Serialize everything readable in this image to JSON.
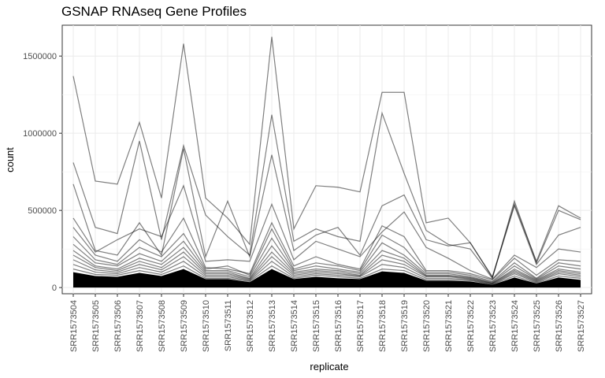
{
  "chart_data": {
    "type": "line",
    "title": "GSNAP RNAseq Gene Profiles",
    "xlabel": "replicate",
    "ylabel": "count",
    "ylim": [
      -40000,
      1700000
    ],
    "yticks": [
      0,
      500000,
      1000000,
      1500000
    ],
    "ytick_labels": [
      "0",
      "500000",
      "1000000",
      "1500000"
    ],
    "grid": true,
    "legend": "none",
    "line_color": "#000000",
    "line_opacity": 0.5,
    "categories": [
      "SRR1573504",
      "SRR1573505",
      "SRR1573506",
      "SRR1573507",
      "SRR1573508",
      "SRR1573509",
      "SRR1573510",
      "SRR1573511",
      "SRR1573512",
      "SRR1573513",
      "SRR1573514",
      "SRR1573515",
      "SRR1573516",
      "SRR1573517",
      "SRR1573518",
      "SRR1573519",
      "SRR1573520",
      "SRR1573521",
      "SRR1573522",
      "SRR1573523",
      "SRR1573524",
      "SRR1573525",
      "SRR1573526",
      "SRR1573527"
    ],
    "series": [
      {
        "values": [
          1370000,
          690000,
          670000,
          1070000,
          580000,
          1580000,
          580000,
          450000,
          280000,
          1625000,
          380000,
          660000,
          650000,
          620000,
          1265000,
          1265000,
          420000,
          450000,
          290000,
          70000,
          540000,
          170000,
          530000,
          450000
        ]
      },
      {
        "values": [
          810000,
          390000,
          350000,
          950000,
          310000,
          920000,
          470000,
          330000,
          210000,
          1120000,
          300000,
          380000,
          330000,
          300000,
          1130000,
          740000,
          370000,
          280000,
          250000,
          60000,
          560000,
          160000,
          500000,
          440000
        ]
      },
      {
        "values": [
          670000,
          240000,
          210000,
          420000,
          210000,
          900000,
          200000,
          560000,
          200000,
          860000,
          240000,
          340000,
          390000,
          210000,
          530000,
          600000,
          310000,
          270000,
          290000,
          65000,
          530000,
          150000,
          340000,
          390000
        ]
      },
      {
        "values": [
          450000,
          230000,
          310000,
          380000,
          330000,
          660000,
          170000,
          180000,
          170000,
          540000,
          180000,
          300000,
          250000,
          200000,
          360000,
          490000,
          260000,
          190000,
          110000,
          55000,
          210000,
          130000,
          250000,
          230000
        ]
      },
      {
        "values": [
          390000,
          210000,
          170000,
          310000,
          230000,
          450000,
          130000,
          120000,
          90000,
          420000,
          140000,
          200000,
          150000,
          120000,
          400000,
          330000,
          110000,
          110000,
          90000,
          50000,
          190000,
          80000,
          180000,
          170000
        ]
      },
      {
        "values": [
          330000,
          180000,
          150000,
          260000,
          200000,
          350000,
          120000,
          140000,
          80000,
          380000,
          120000,
          160000,
          140000,
          110000,
          340000,
          260000,
          100000,
          100000,
          80000,
          40000,
          160000,
          60000,
          160000,
          140000
        ]
      },
      {
        "values": [
          280000,
          160000,
          140000,
          220000,
          170000,
          300000,
          110000,
          110000,
          70000,
          320000,
          110000,
          140000,
          120000,
          100000,
          290000,
          210000,
          90000,
          90000,
          70000,
          35000,
          140000,
          55000,
          140000,
          120000
        ]
      },
      {
        "values": [
          240000,
          140000,
          120000,
          190000,
          150000,
          260000,
          100000,
          100000,
          60000,
          270000,
          100000,
          120000,
          110000,
          90000,
          240000,
          190000,
          80000,
          80000,
          65000,
          30000,
          120000,
          50000,
          120000,
          100000
        ]
      },
      {
        "values": [
          210000,
          130000,
          110000,
          170000,
          130000,
          230000,
          90000,
          90000,
          55000,
          230000,
          90000,
          110000,
          100000,
          80000,
          210000,
          170000,
          75000,
          75000,
          60000,
          28000,
          110000,
          45000,
          110000,
          90000
        ]
      },
      {
        "values": [
          180000,
          115000,
          100000,
          150000,
          115000,
          200000,
          80000,
          80000,
          50000,
          200000,
          80000,
          100000,
          90000,
          75000,
          180000,
          150000,
          70000,
          70000,
          55000,
          25000,
          100000,
          40000,
          100000,
          80000
        ]
      },
      {
        "values": [
          150000,
          100000,
          90000,
          130000,
          100000,
          170000,
          70000,
          70000,
          45000,
          170000,
          70000,
          90000,
          80000,
          70000,
          150000,
          130000,
          60000,
          60000,
          50000,
          22000,
          90000,
          35000,
          90000,
          70000
        ]
      },
      {
        "values": [
          120000,
          85000,
          80000,
          110000,
          85000,
          140000,
          60000,
          60000,
          40000,
          140000,
          60000,
          80000,
          70000,
          60000,
          120000,
          110000,
          50000,
          50000,
          45000,
          20000,
          75000,
          30000,
          75000,
          60000
        ]
      }
    ],
    "dense_band": {
      "description_values_upper": [
        100000,
        75000,
        70000,
        95000,
        75000,
        120000,
        55000,
        55000,
        35000,
        120000,
        55000,
        70000,
        60000,
        55000,
        105000,
        95000,
        45000,
        45000,
        40000,
        18000,
        65000,
        27000,
        65000,
        50000
      ]
    }
  }
}
